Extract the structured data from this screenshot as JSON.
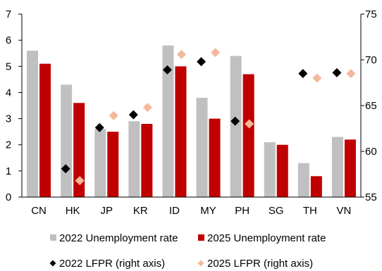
{
  "chart_data": {
    "type": "bar",
    "categories": [
      "CN",
      "HK",
      "JP",
      "KR",
      "ID",
      "MY",
      "PH",
      "SG",
      "TH",
      "VN"
    ],
    "y_left": {
      "ylim": [
        0,
        7
      ],
      "ticks": [
        "0",
        "1",
        "2",
        "3",
        "4",
        "5",
        "6",
        "7"
      ]
    },
    "y_right": {
      "ylim": [
        55,
        75
      ],
      "ticks": [
        "55",
        "60",
        "65",
        "70",
        "75"
      ]
    },
    "bar_series": [
      {
        "name": "2022 Unemployment rate",
        "color": "#c0c0c0",
        "values": [
          5.6,
          4.3,
          2.6,
          2.9,
          5.8,
          3.8,
          5.4,
          2.1,
          1.3,
          2.3
        ]
      },
      {
        "name": "2025 Unemployment rate",
        "color": "#c00000",
        "values": [
          5.1,
          3.6,
          2.5,
          2.8,
          5.0,
          3.0,
          4.7,
          2.0,
          0.8,
          2.2
        ]
      }
    ],
    "marker_series": [
      {
        "name": "2022 LFPR (right axis)",
        "color": "#000000",
        "marker": "diamond",
        "values": [
          null,
          58.1,
          62.6,
          64.0,
          68.9,
          69.8,
          63.3,
          null,
          68.5,
          68.6
        ]
      },
      {
        "name": "2025 LFPR (right axis)",
        "color": "#f4b89a",
        "marker": "diamond",
        "values": [
          null,
          56.8,
          63.9,
          64.8,
          70.6,
          70.8,
          63.0,
          null,
          68.0,
          68.5
        ]
      }
    ],
    "grid": false,
    "legend_position": "bottom"
  }
}
